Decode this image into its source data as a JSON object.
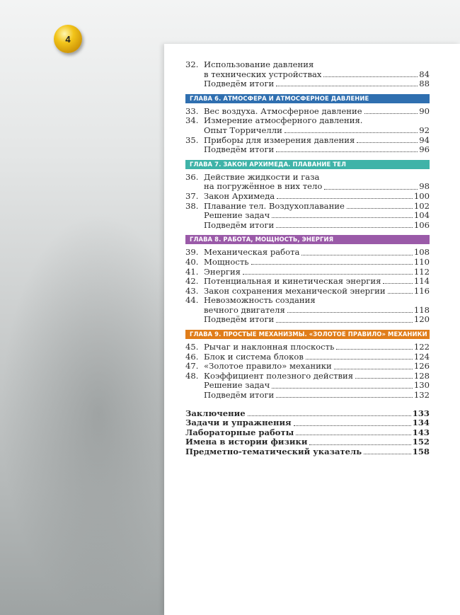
{
  "page_number": "4",
  "sections": [
    {
      "header": "",
      "color": "",
      "entries": [
        {
          "num": "32.",
          "lines": [
            "Использование давления",
            "в технических устройствах"
          ],
          "page": "84"
        },
        {
          "num": "",
          "lines": [
            "Подведём итоги"
          ],
          "page": "88"
        }
      ]
    },
    {
      "header": "ГЛАВА 6. АТМОСФЕРА И АТМОСФЕРНОЕ ДАВЛЕНИЕ",
      "color": "#2f6fb0",
      "entries": [
        {
          "num": "33.",
          "lines": [
            "Вес воздуха. Атмосферное давление"
          ],
          "page": "90"
        },
        {
          "num": "34.",
          "lines": [
            "Измерение атмосферного давления.",
            "Опыт Торричелли"
          ],
          "page": "92"
        },
        {
          "num": "35.",
          "lines": [
            "Приборы для измерения давления"
          ],
          "page": "94"
        },
        {
          "num": "",
          "lines": [
            "Подведём итоги"
          ],
          "page": "96"
        }
      ]
    },
    {
      "header": "ГЛАВА 7. ЗАКОН АРХИМЕДА. ПЛАВАНИЕ ТЕЛ",
      "color": "#3fb3a8",
      "entries": [
        {
          "num": "36.",
          "lines": [
            "Действие жидкости и газа",
            "на погружённое в них тело"
          ],
          "page": "98"
        },
        {
          "num": "37.",
          "lines": [
            "Закон Архимеда"
          ],
          "page": "100"
        },
        {
          "num": "38.",
          "lines": [
            "Плавание тел. Воздухоплавание"
          ],
          "page": "102"
        },
        {
          "num": "",
          "lines": [
            "Решение задач"
          ],
          "page": "104"
        },
        {
          "num": "",
          "lines": [
            "Подведём итоги"
          ],
          "page": "106"
        }
      ]
    },
    {
      "header": "ГЛАВА 8. РАБОТА, МОЩНОСТЬ, ЭНЕРГИЯ",
      "color": "#9a5aa8",
      "entries": [
        {
          "num": "39.",
          "lines": [
            "Механическая работа"
          ],
          "page": "108"
        },
        {
          "num": "40.",
          "lines": [
            "Мощность"
          ],
          "page": "110"
        },
        {
          "num": "41.",
          "lines": [
            "Энергия"
          ],
          "page": "112"
        },
        {
          "num": "42.",
          "lines": [
            "Потенциальная и кинетическая энергия"
          ],
          "page": "114"
        },
        {
          "num": "43.",
          "lines": [
            "Закон сохранения механической энергии"
          ],
          "page": "116"
        },
        {
          "num": "44.",
          "lines": [
            "Невозможность создания",
            "вечного двигателя"
          ],
          "page": "118"
        },
        {
          "num": "",
          "lines": [
            "Подведём итоги"
          ],
          "page": "120"
        }
      ]
    },
    {
      "header": "ГЛАВА 9. ПРОСТЫЕ МЕХАНИЗМЫ. «ЗОЛОТОЕ ПРАВИЛО» МЕХАНИКИ",
      "color": "#e07d1a",
      "entries": [
        {
          "num": "45.",
          "lines": [
            "Рычаг и наклонная плоскость"
          ],
          "page": "122"
        },
        {
          "num": "46.",
          "lines": [
            "Блок и система блоков"
          ],
          "page": "124"
        },
        {
          "num": "47.",
          "lines": [
            "«Золотое правило» механики"
          ],
          "page": "126"
        },
        {
          "num": "48.",
          "lines": [
            "Коэффициент полезного действия"
          ],
          "page": "128"
        },
        {
          "num": "",
          "lines": [
            "Решение задач"
          ],
          "page": "130"
        },
        {
          "num": "",
          "lines": [
            "Подведём итоги"
          ],
          "page": "132"
        }
      ]
    }
  ],
  "appendix": [
    {
      "title": "Заключение",
      "page": "133"
    },
    {
      "title": "Задачи и упражнения",
      "page": "134"
    },
    {
      "title": "Лабораторные работы",
      "page": "143"
    },
    {
      "title": "Имена в истории физики",
      "page": "152"
    },
    {
      "title": "Предметно-тематический указатель",
      "page": "158"
    }
  ]
}
